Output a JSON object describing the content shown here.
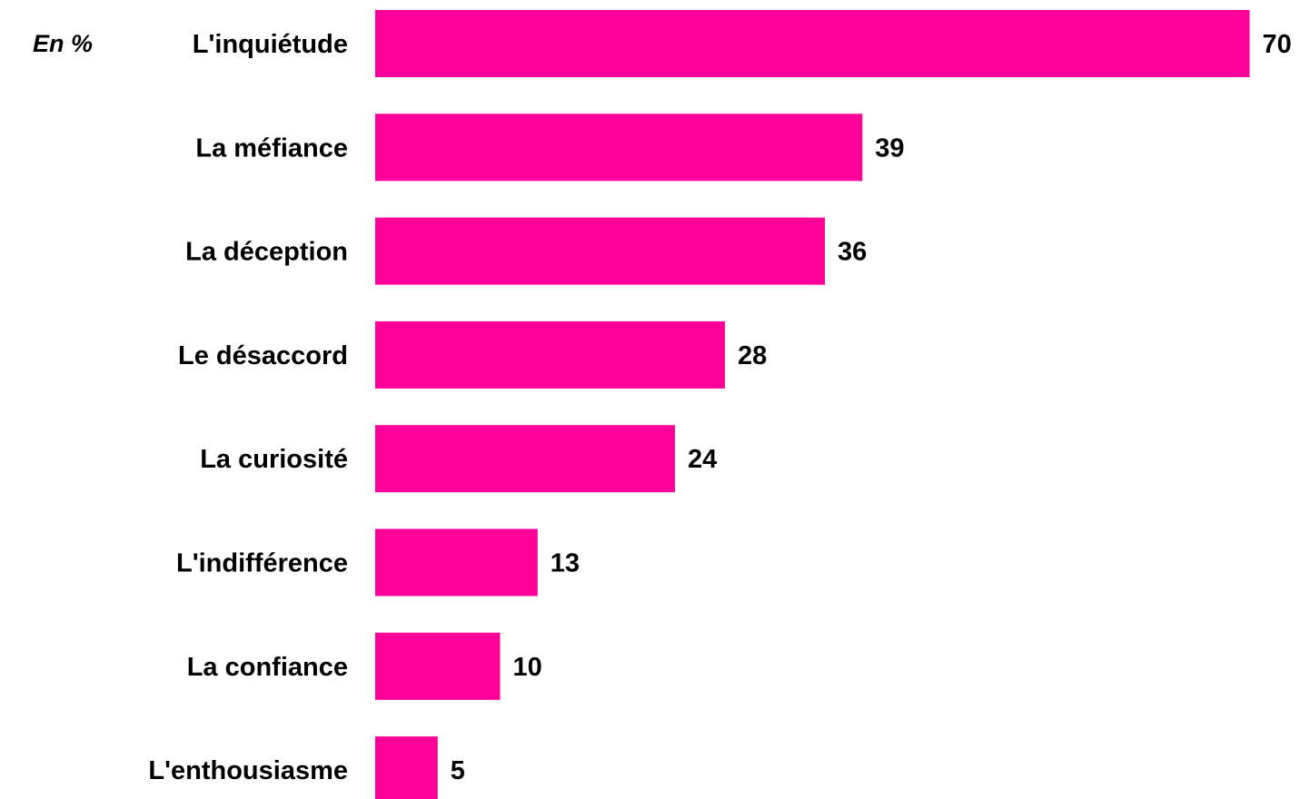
{
  "chart_data": {
    "type": "bar",
    "orientation": "horizontal",
    "unit_label": "En %",
    "categories": [
      "L'inquiétude",
      "La méfiance",
      "La déception",
      "Le désaccord",
      "La curiosité",
      "L'indifférence",
      "La confiance",
      "L'enthousiasme"
    ],
    "values": [
      70,
      39,
      36,
      28,
      24,
      13,
      10,
      5
    ],
    "bar_color": "#FF0099",
    "xlim": [
      0,
      70
    ],
    "grid": false,
    "legend": "none"
  }
}
